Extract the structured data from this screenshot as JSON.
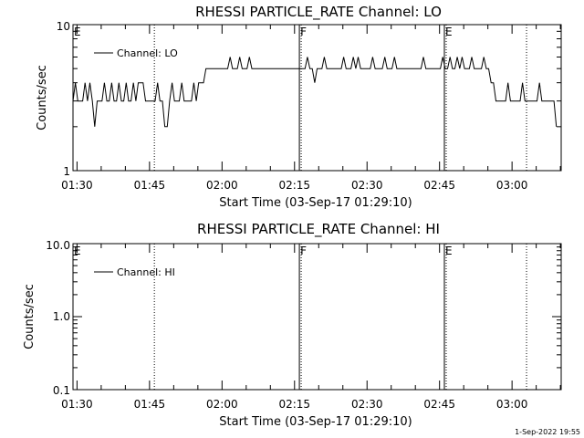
{
  "footer_timestamp": "1-Sep-2022 19:55",
  "chart_data": [
    {
      "type": "line",
      "title": "RHESSI PARTICLE_RATE Channel: LO",
      "xlabel": "Start Time (03-Sep-17 01:29:10)",
      "ylabel": "Counts/sec",
      "yscale": "log",
      "ylim": [
        1,
        10
      ],
      "ytick_labels": [
        "1",
        "10"
      ],
      "xlim_minutes_after_0129_10": [
        0,
        101
      ],
      "xtick_labels": [
        "01:30",
        "01:45",
        "02:00",
        "02:15",
        "02:30",
        "02:45",
        "03:00"
      ],
      "grid": false,
      "legend": "top-left",
      "series": [
        {
          "name": "Channel: LO",
          "x_start": "01:29:10",
          "x_step_minutes": 0.5,
          "values": [
            3,
            4,
            3,
            3,
            3,
            4,
            3,
            4,
            3,
            2,
            3,
            3,
            3,
            4,
            3,
            3,
            4,
            3,
            3,
            4,
            3,
            3,
            4,
            3,
            3,
            4,
            3,
            4,
            4,
            4,
            3,
            3,
            3,
            3,
            3,
            4,
            3,
            3,
            2,
            2,
            3,
            4,
            3,
            3,
            3,
            4,
            3,
            3,
            3,
            3,
            4,
            3,
            4,
            4,
            4,
            5,
            5,
            5,
            5,
            5,
            5,
            5,
            5,
            5,
            5,
            6,
            5,
            5,
            5,
            6,
            5,
            5,
            5,
            6,
            5,
            5,
            5,
            5,
            5,
            5,
            5,
            5,
            5,
            5,
            5,
            5,
            5,
            5,
            5,
            5,
            5,
            5,
            5,
            5,
            5,
            5,
            5,
            6,
            5,
            5,
            4,
            5,
            5,
            5,
            6,
            5,
            5,
            5,
            5,
            5,
            5,
            5,
            6,
            5,
            5,
            5,
            6,
            5,
            6,
            5,
            5,
            5,
            5,
            5,
            6,
            5,
            5,
            5,
            5,
            6,
            5,
            5,
            5,
            6,
            5,
            5,
            5,
            5,
            5,
            5,
            5,
            5,
            5,
            5,
            5,
            6,
            5,
            5,
            5,
            5,
            5,
            5,
            5,
            6,
            5,
            5,
            6,
            5,
            5,
            6,
            5,
            6,
            5,
            5,
            5,
            6,
            5,
            5,
            5,
            5,
            6,
            5,
            5,
            4,
            4,
            3,
            3,
            3,
            3,
            3,
            4,
            3,
            3,
            3,
            3,
            3,
            4,
            3,
            3,
            3,
            3,
            3,
            3,
            4,
            3,
            3,
            3,
            3,
            3,
            3,
            2
          ]
        }
      ],
      "markers": [
        {
          "label": "E",
          "time": "01:29:10",
          "style": "none"
        },
        {
          "label": "",
          "time": "01:46",
          "style": "dotted"
        },
        {
          "label": "F",
          "time": "02:16",
          "style": "solid"
        },
        {
          "label": "E",
          "time": "02:46",
          "style": "solid"
        },
        {
          "label": "",
          "time": "03:03",
          "style": "dotted"
        }
      ]
    },
    {
      "type": "line",
      "title": "RHESSI PARTICLE_RATE Channel: HI",
      "xlabel": "Start Time (03-Sep-17 01:29:10)",
      "ylabel": "Counts/sec",
      "yscale": "log",
      "ylim": [
        0.1,
        10
      ],
      "ytick_labels": [
        "0.1",
        "1.0",
        "10.0"
      ],
      "xtick_labels": [
        "01:30",
        "01:45",
        "02:00",
        "02:15",
        "02:30",
        "02:45",
        "03:00"
      ],
      "grid": false,
      "legend": "top-left",
      "series": [
        {
          "name": "Channel: HI",
          "values": []
        }
      ],
      "markers": [
        {
          "label": "E",
          "time": "01:29:10",
          "style": "none"
        },
        {
          "label": "",
          "time": "01:46",
          "style": "dotted"
        },
        {
          "label": "F",
          "time": "02:16",
          "style": "solid"
        },
        {
          "label": "E",
          "time": "02:46",
          "style": "solid"
        },
        {
          "label": "",
          "time": "03:03",
          "style": "dotted"
        }
      ]
    }
  ]
}
